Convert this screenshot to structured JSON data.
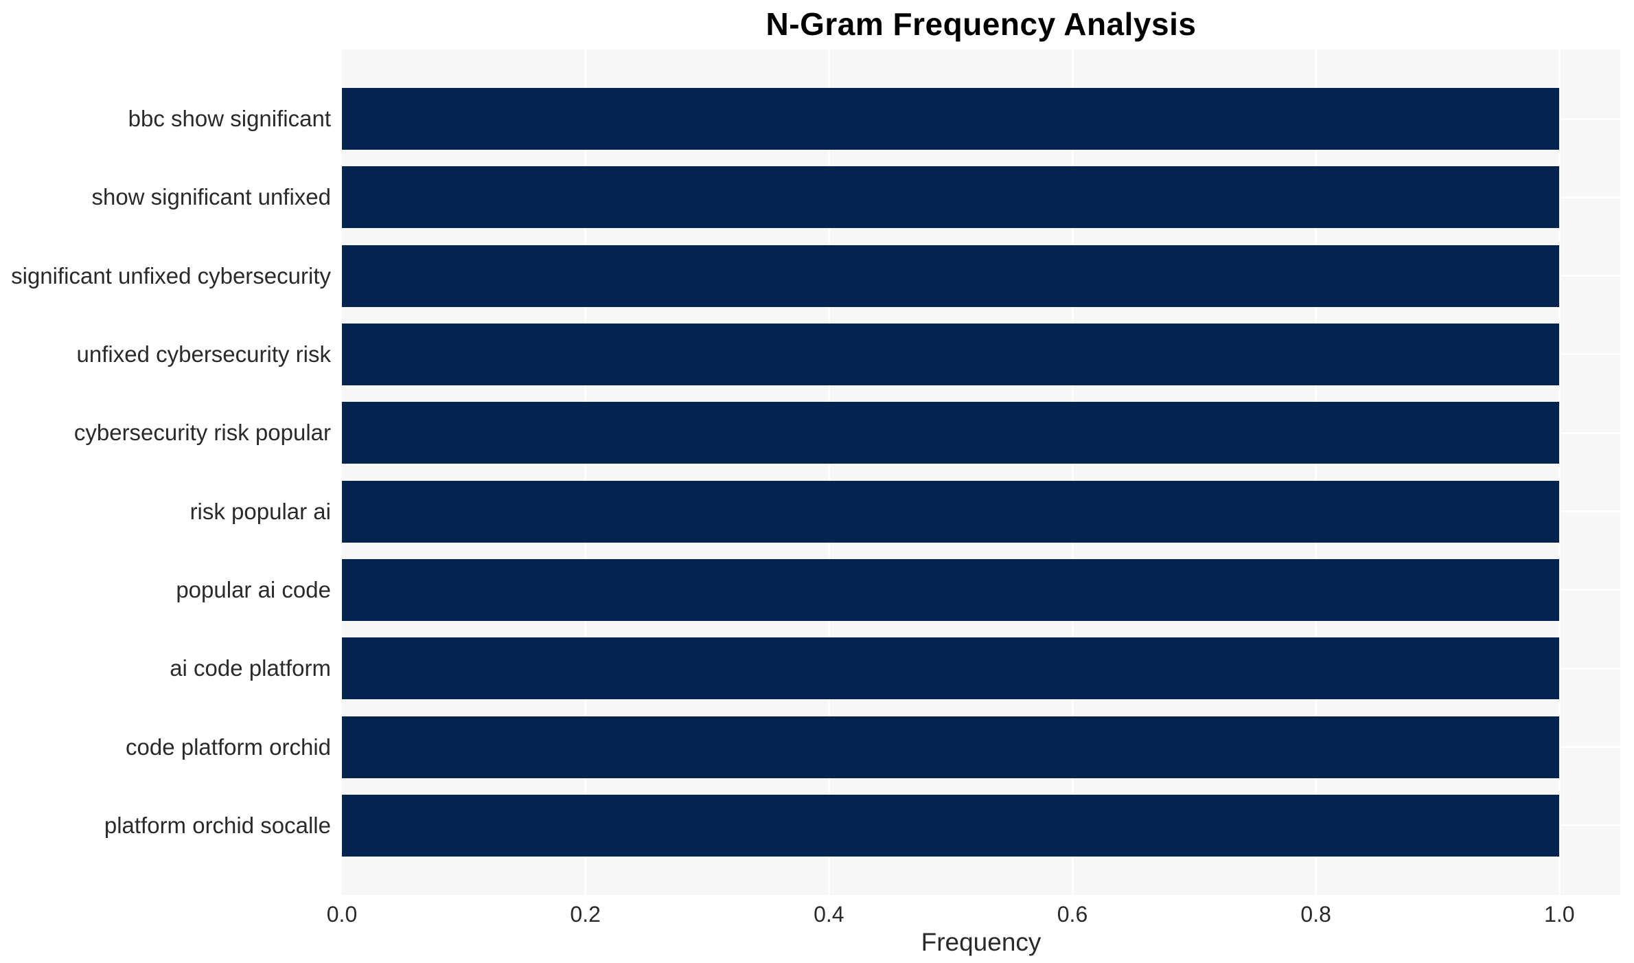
{
  "chart_data": {
    "type": "bar",
    "orientation": "horizontal",
    "title": "N-Gram Frequency Analysis",
    "xlabel": "Frequency",
    "ylabel": "",
    "categories": [
      "bbc show significant",
      "show significant unfixed",
      "significant unfixed cybersecurity",
      "unfixed cybersecurity risk",
      "cybersecurity risk popular",
      "risk popular ai",
      "popular ai code",
      "ai code platform",
      "code platform orchid",
      "platform orchid socalle"
    ],
    "values": [
      1.0,
      1.0,
      1.0,
      1.0,
      1.0,
      1.0,
      1.0,
      1.0,
      1.0,
      1.0
    ],
    "x_ticks": [
      {
        "value": 0.0,
        "label": "0.0"
      },
      {
        "value": 0.2,
        "label": "0.2"
      },
      {
        "value": 0.4,
        "label": "0.4"
      },
      {
        "value": 0.6,
        "label": "0.6"
      },
      {
        "value": 0.8,
        "label": "0.8"
      },
      {
        "value": 1.0,
        "label": "1.0"
      }
    ],
    "xlim": [
      0,
      1.05
    ],
    "grid": true,
    "legend_position": "none",
    "colors": {
      "bar": "#02244E",
      "plot_background": "#F7F7F8",
      "figure_background": "#FFFFFF",
      "gridline": "#FFFFFF",
      "title": "#000000",
      "labels": "#2A2A2A"
    }
  }
}
